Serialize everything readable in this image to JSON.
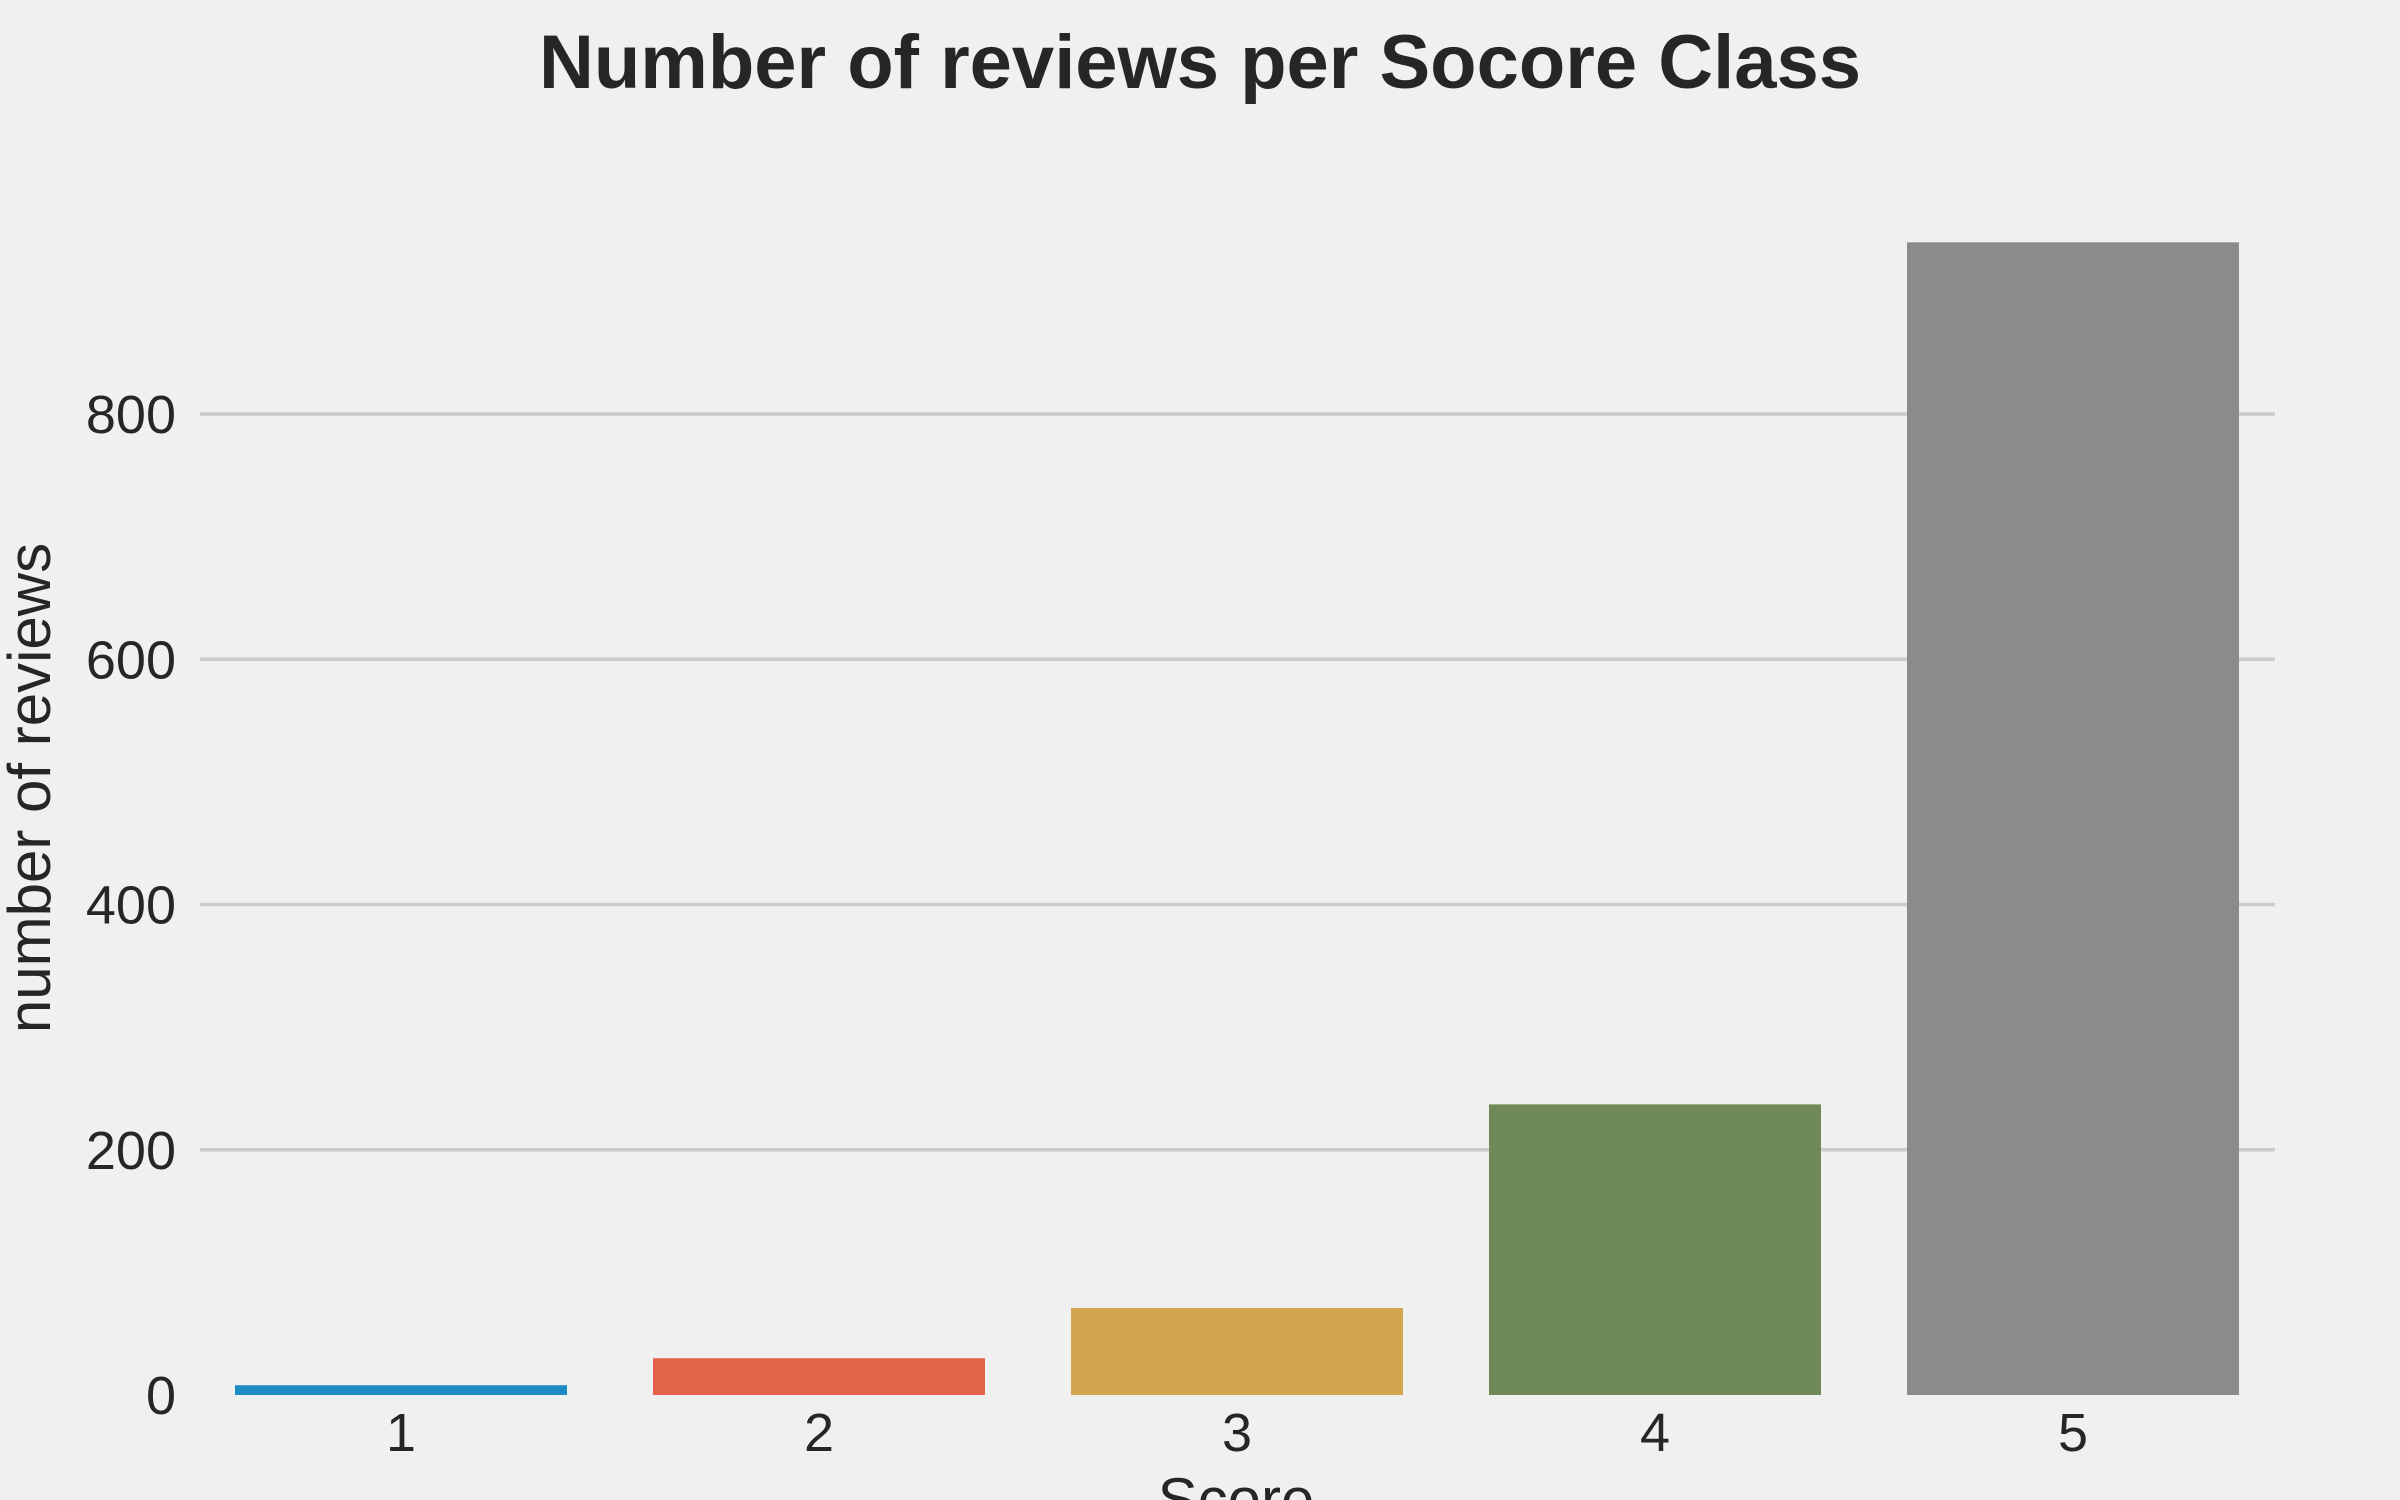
{
  "chart_data": {
    "type": "bar",
    "title": "Number of reviews per Socore Class",
    "xlabel": "Score",
    "ylabel": "number of reviews",
    "categories": [
      "1",
      "2",
      "3",
      "4",
      "5"
    ],
    "values": [
      8,
      30,
      71,
      237,
      940
    ],
    "colors": [
      "#1f8bc5",
      "#e2634a",
      "#d2a54f",
      "#6f8a58",
      "#8b8b8b"
    ],
    "yticks": [
      0,
      200,
      400,
      600,
      800
    ],
    "ylim": [
      0,
      1000
    ],
    "grid": "horizontal",
    "background": "#f0f0f0"
  }
}
